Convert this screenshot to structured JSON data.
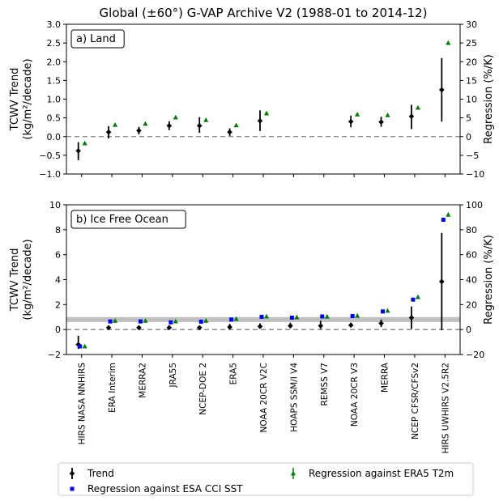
{
  "title": "Global (±60°) G-VAP Archive V2 (1988-01 to 2014-12)",
  "datasets": [
    "HIRS NASA NNHIRS",
    "ERA Interim",
    "MERRA2",
    "JRA55",
    "NCEP-DOE 2",
    "ERA5",
    "NOAA 20CR V2C",
    "HOAPS SSM/I V4",
    "REMSS V7",
    "NOAA 20CR V3",
    "MERRA",
    "NCEP CFSR/CFSv2",
    "HIRS UWHIRS V2.5R2"
  ],
  "colors": {
    "trend": "#000000",
    "esa": "#0000ff",
    "era5": "#008000",
    "band": "#c0c0c0",
    "zero": "#808080"
  },
  "legend": {
    "trend": "Trend",
    "esa": "Regression against ESA CCI SST",
    "era5": "Regression against ERA5 T2m"
  },
  "chart_data": [
    {
      "type": "scatter",
      "panel_label": "a) Land",
      "ylabel_left_line1": "TCWV Trend",
      "ylabel_left_line2": "(kg/m²/decade)",
      "ylabel_right": "Regression (%/K)",
      "ylim": [
        -1.0,
        3.0
      ],
      "yticks": [
        "−1.0",
        "−0.5",
        "0.0",
        "0.5",
        "1.0",
        "1.5",
        "2.0",
        "2.5",
        "3.0"
      ],
      "yticks_values": [
        -1.0,
        -0.5,
        0.0,
        0.5,
        1.0,
        1.5,
        2.0,
        2.5,
        3.0
      ],
      "ylim_right": [
        -10,
        30
      ],
      "yticks_right": [
        "−10",
        "−5",
        "0",
        "5",
        "10",
        "15",
        "20",
        "25",
        "30"
      ],
      "yticks_right_values": [
        -10,
        -5,
        0,
        5,
        10,
        15,
        20,
        25,
        30
      ],
      "trend": [
        {
          "x": 0,
          "y": -0.38,
          "lo": -0.63,
          "hi": -0.15
        },
        {
          "x": 1,
          "y": 0.12,
          "lo": -0.05,
          "hi": 0.28
        },
        {
          "x": 2,
          "y": 0.16,
          "lo": 0.06,
          "hi": 0.26
        },
        {
          "x": 3,
          "y": 0.29,
          "lo": 0.17,
          "hi": 0.41
        },
        {
          "x": 4,
          "y": 0.29,
          "lo": 0.1,
          "hi": 0.52
        },
        {
          "x": 5,
          "y": 0.12,
          "lo": 0.02,
          "hi": 0.22
        },
        {
          "x": 6,
          "y": 0.42,
          "lo": 0.15,
          "hi": 0.7
        },
        {
          "x": 9,
          "y": 0.4,
          "lo": 0.25,
          "hi": 0.56
        },
        {
          "x": 10,
          "y": 0.39,
          "lo": 0.26,
          "hi": 0.53
        },
        {
          "x": 11,
          "y": 0.54,
          "lo": 0.2,
          "hi": 0.85
        },
        {
          "x": 12,
          "y": 1.25,
          "lo": 0.4,
          "hi": 2.1
        }
      ],
      "era5_regression": [
        {
          "x": 0,
          "y": -1.8
        },
        {
          "x": 1,
          "y": 3.1
        },
        {
          "x": 2,
          "y": 3.4
        },
        {
          "x": 3,
          "y": 5.1
        },
        {
          "x": 4,
          "y": 4.4
        },
        {
          "x": 5,
          "y": 3.0
        },
        {
          "x": 6,
          "y": 6.2
        },
        {
          "x": 9,
          "y": 5.9
        },
        {
          "x": 10,
          "y": 5.7
        },
        {
          "x": 11,
          "y": 7.7
        },
        {
          "x": 12,
          "y": 25.0
        }
      ]
    },
    {
      "type": "scatter",
      "panel_label": "b) Ice Free Ocean",
      "ylabel_left_line1": "TCWV Trend",
      "ylabel_left_line2": "(kg/m²/decade)",
      "ylabel_right": "Regression (%/K)",
      "ylim": [
        -2,
        10
      ],
      "yticks": [
        "−2",
        "0",
        "2",
        "4",
        "6",
        "8",
        "10"
      ],
      "yticks_values": [
        -2,
        0,
        2,
        4,
        6,
        8,
        10
      ],
      "ylim_right": [
        -20,
        100
      ],
      "yticks_right": [
        "−20",
        "0",
        "20",
        "40",
        "60",
        "80",
        "100"
      ],
      "yticks_right_values": [
        -20,
        0,
        20,
        40,
        60,
        80,
        100
      ],
      "band_range": [
        0.6,
        1.0
      ],
      "trend": [
        {
          "x": 0,
          "y": -1.2,
          "lo": -1.55,
          "hi": -0.5
        },
        {
          "x": 1,
          "y": 0.15,
          "lo": 0.05,
          "hi": 0.3
        },
        {
          "x": 2,
          "y": 0.15,
          "lo": 0.08,
          "hi": 0.22
        },
        {
          "x": 3,
          "y": 0.15,
          "lo": 0.08,
          "hi": 0.22
        },
        {
          "x": 4,
          "y": 0.15,
          "lo": 0.05,
          "hi": 0.25
        },
        {
          "x": 5,
          "y": 0.2,
          "lo": 0.05,
          "hi": 0.45
        },
        {
          "x": 6,
          "y": 0.25,
          "lo": 0.1,
          "hi": 0.5
        },
        {
          "x": 7,
          "y": 0.3,
          "lo": 0.1,
          "hi": 0.55
        },
        {
          "x": 8,
          "y": 0.3,
          "lo": 0.05,
          "hi": 0.7
        },
        {
          "x": 9,
          "y": 0.35,
          "lo": 0.2,
          "hi": 0.55
        },
        {
          "x": 10,
          "y": 0.5,
          "lo": 0.2,
          "hi": 0.8
        },
        {
          "x": 11,
          "y": 0.95,
          "lo": 0.05,
          "hi": 1.85
        },
        {
          "x": 12,
          "y": 3.85,
          "lo": -0.05,
          "hi": 7.75
        }
      ],
      "esa_regression": [
        {
          "x": 0,
          "y": -13.5
        },
        {
          "x": 1,
          "y": 6.5
        },
        {
          "x": 2,
          "y": 6.5
        },
        {
          "x": 3,
          "y": 5.8
        },
        {
          "x": 4,
          "y": 6.3
        },
        {
          "x": 5,
          "y": 8.0
        },
        {
          "x": 6,
          "y": 10.2
        },
        {
          "x": 7,
          "y": 9.5
        },
        {
          "x": 8,
          "y": 10.5
        },
        {
          "x": 9,
          "y": 10.8
        },
        {
          "x": 10,
          "y": 14.5
        },
        {
          "x": 11,
          "y": 24.0
        },
        {
          "x": 12,
          "y": 88.0
        }
      ],
      "era5_regression": [
        {
          "x": 0,
          "y": -13.5
        },
        {
          "x": 1,
          "y": 7.0
        },
        {
          "x": 2,
          "y": 7.0
        },
        {
          "x": 3,
          "y": 6.5
        },
        {
          "x": 4,
          "y": 7.0
        },
        {
          "x": 5,
          "y": 8.5
        },
        {
          "x": 6,
          "y": 10.5
        },
        {
          "x": 7,
          "y": 9.8
        },
        {
          "x": 8,
          "y": 10.3
        },
        {
          "x": 9,
          "y": 11.0
        },
        {
          "x": 10,
          "y": 15.0
        },
        {
          "x": 11,
          "y": 26.0
        },
        {
          "x": 12,
          "y": 92.0
        }
      ]
    }
  ]
}
